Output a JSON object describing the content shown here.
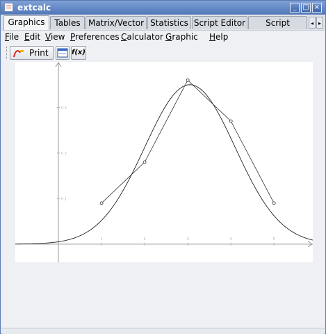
{
  "window": {
    "title": "extcalc",
    "minimize_glyph": "_",
    "maximize_glyph": "□",
    "close_glyph": "×"
  },
  "tabs": [
    {
      "label": "Graphics",
      "active": true
    },
    {
      "label": "Tables"
    },
    {
      "label": "Matrix/Vector"
    },
    {
      "label": "Statistics"
    },
    {
      "label": "Script Editor"
    },
    {
      "label": "Script Console"
    }
  ],
  "tab_scroll": {
    "left": "◂",
    "right": "▸"
  },
  "menu": [
    {
      "mnemonic": "F",
      "rest": "ile"
    },
    {
      "mnemonic": "E",
      "rest": "dit"
    },
    {
      "mnemonic": "V",
      "rest": "iew"
    },
    {
      "mnemonic": "P",
      "rest": "references"
    },
    {
      "mnemonic": "C",
      "rest": "alculator"
    },
    {
      "mnemonic": "G",
      "rest": "raphic"
    },
    {
      "mnemonic": "H",
      "rest": "elp"
    }
  ],
  "toolbar": {
    "print_label": "Print",
    "print_icon": "graph-pen-icon",
    "window_icon": "window-icon",
    "fx_label": "f(x)"
  },
  "chart_data": {
    "type": "line",
    "x_range": [
      -1,
      5.9
    ],
    "y_range": [
      -0.04,
      0.4
    ],
    "x_ticks": [
      "1",
      "2",
      "3",
      "4",
      "5"
    ],
    "y_ticks": [
      "0.1",
      "0.2",
      "0.3"
    ],
    "series": [
      {
        "style": "points-connected",
        "points": [
          [
            1,
            0.09
          ],
          [
            2,
            0.18
          ],
          [
            3,
            0.36
          ],
          [
            4,
            0.27
          ],
          [
            5,
            0.09
          ]
        ]
      },
      {
        "style": "smooth-curve",
        "mean": 3.05,
        "peak": 0.35,
        "sigma": 1.05
      }
    ]
  }
}
